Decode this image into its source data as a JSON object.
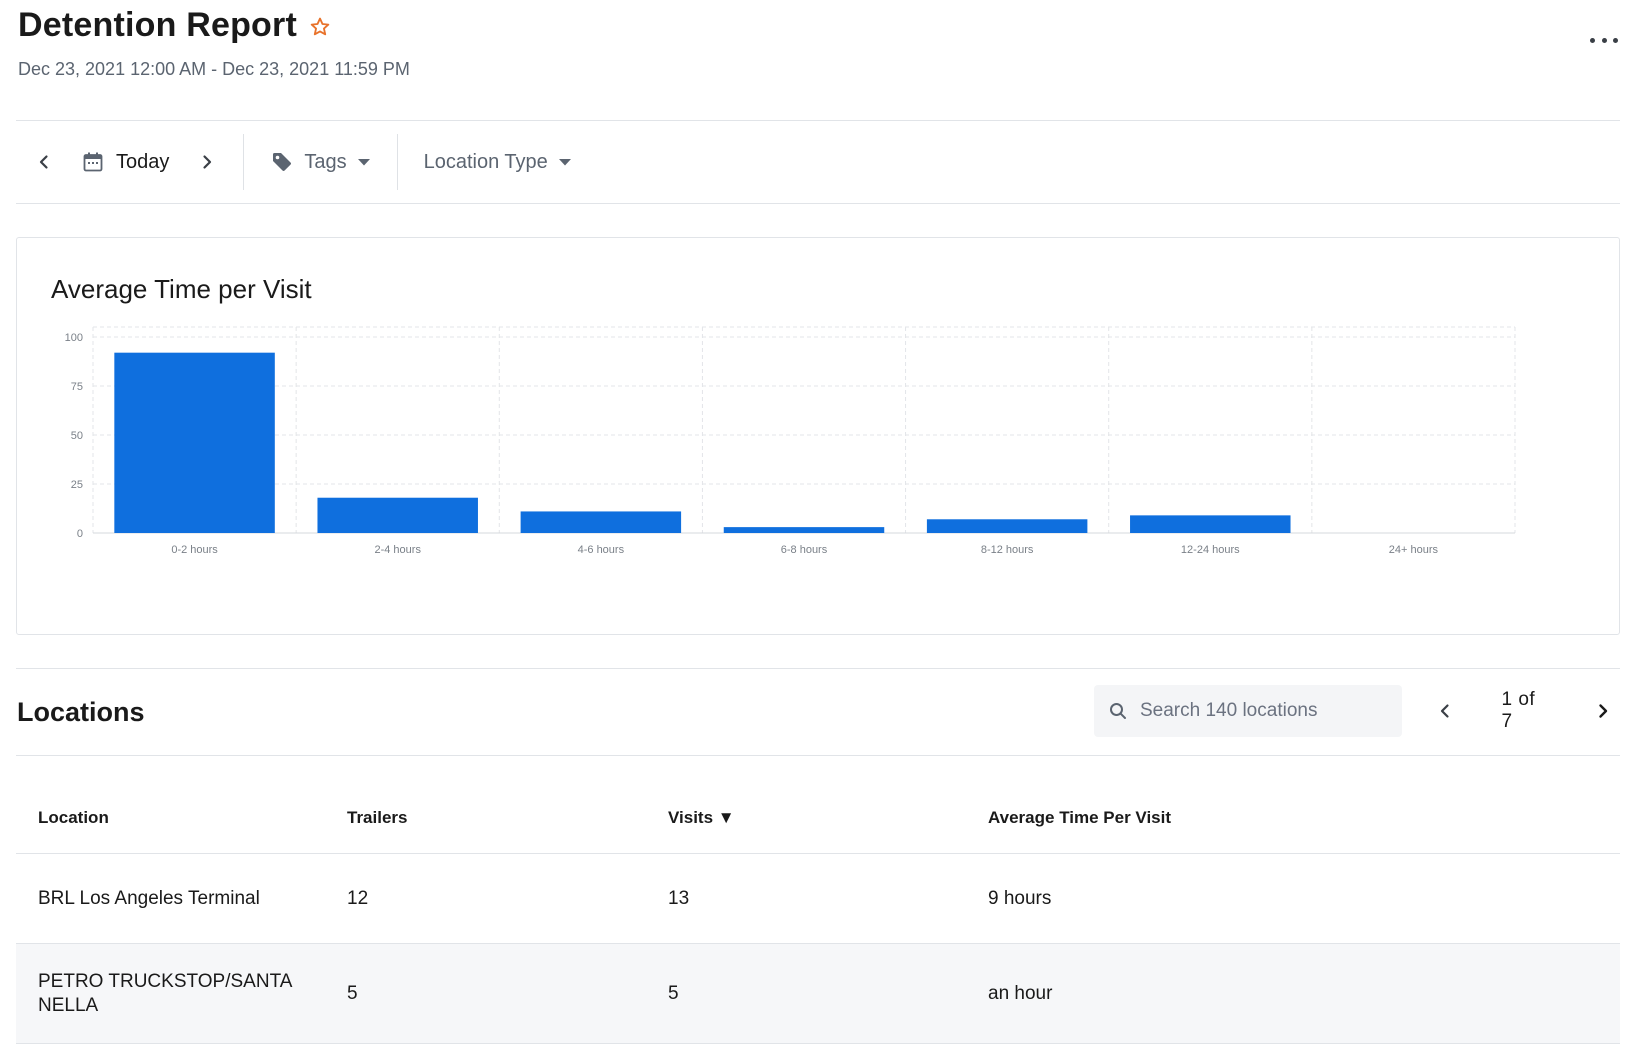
{
  "header": {
    "title": "Detention Report",
    "date_range": "Dec 23, 2021 12:00 AM - Dec 23, 2021 11:59 PM"
  },
  "toolbar": {
    "date_label": "Today",
    "tags_label": "Tags",
    "location_type_label": "Location Type"
  },
  "chart": {
    "title": "Average Time per Visit"
  },
  "chart_data": {
    "type": "bar",
    "title": "Average Time per Visit",
    "categories": [
      "0-2 hours",
      "2-4 hours",
      "4-6 hours",
      "6-8 hours",
      "8-12 hours",
      "12-24 hours",
      "24+ hours"
    ],
    "values": [
      92,
      18,
      11,
      3,
      7,
      9,
      0
    ],
    "yticks": [
      "0",
      "25",
      "50",
      "75",
      "100"
    ],
    "ylim": [
      0,
      100
    ],
    "grid": true,
    "color": "#0f6fde"
  },
  "locations": {
    "title": "Locations",
    "search_placeholder": "Search 140 locations",
    "pager": {
      "current": "1",
      "of": "of",
      "total": "7"
    }
  },
  "table": {
    "headers": {
      "location": "Location",
      "trailers": "Trailers",
      "visits": "Visits ▼",
      "avg": "Average Time Per Visit"
    },
    "rows": [
      {
        "location": "BRL Los Angeles Terminal",
        "trailers": "12",
        "visits": "13",
        "avg": "9 hours"
      },
      {
        "location": "PETRO TRUCKSTOP/SANTA NELLA",
        "trailers": "5",
        "visits": "5",
        "avg": "an hour"
      }
    ]
  },
  "colors": {
    "accent": "#0f6fde",
    "star": "#e8722a"
  },
  "icons": {
    "star": "star-outline-icon",
    "more": "more-horizontal-icon",
    "calendar": "calendar-icon",
    "tag": "tag-icon",
    "search": "search-icon"
  }
}
